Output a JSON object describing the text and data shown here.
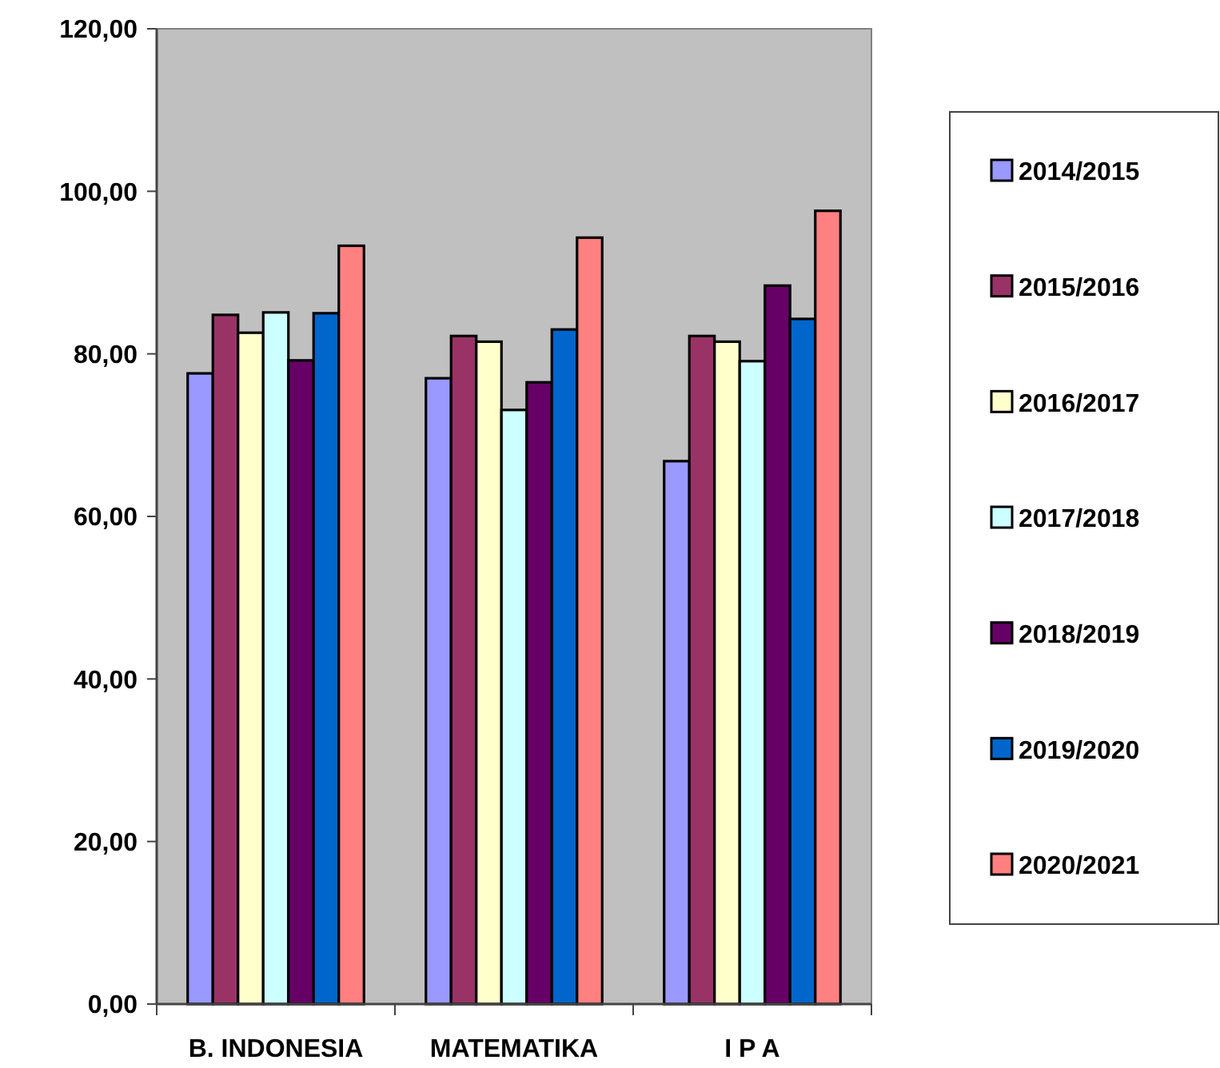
{
  "chart_data": {
    "type": "bar",
    "categories": [
      "B. INDONESIA",
      "MATEMATIKA",
      "I P A"
    ],
    "series": [
      {
        "name": "2014/2015",
        "color": "#9999ff",
        "values": [
          77.6,
          77.0,
          66.8
        ]
      },
      {
        "name": "2015/2016",
        "color": "#993366",
        "values": [
          84.8,
          82.2,
          82.2
        ]
      },
      {
        "name": "2016/2017",
        "color": "#ffffcc",
        "values": [
          82.6,
          81.5,
          81.5
        ]
      },
      {
        "name": "2017/2018",
        "color": "#ccffff",
        "values": [
          85.1,
          73.1,
          79.1
        ]
      },
      {
        "name": "2018/2019",
        "color": "#660066",
        "values": [
          79.2,
          76.5,
          88.4
        ]
      },
      {
        "name": "2019/2020",
        "color": "#0066cc",
        "values": [
          85.0,
          83.0,
          84.3
        ]
      },
      {
        "name": "2020/2021",
        "color": "#ff8080",
        "values": [
          93.3,
          94.3,
          97.6
        ]
      }
    ],
    "ylim": [
      0,
      120
    ],
    "yticks": [
      {
        "value": 0,
        "label": "0,00"
      },
      {
        "value": 20,
        "label": "20,00"
      },
      {
        "value": 40,
        "label": "40,00"
      },
      {
        "value": 60,
        "label": "60,00"
      },
      {
        "value": 80,
        "label": "80,00"
      },
      {
        "value": 100,
        "label": "100,00"
      },
      {
        "value": 120,
        "label": "120,00"
      }
    ],
    "grid": false,
    "legend": "right"
  }
}
